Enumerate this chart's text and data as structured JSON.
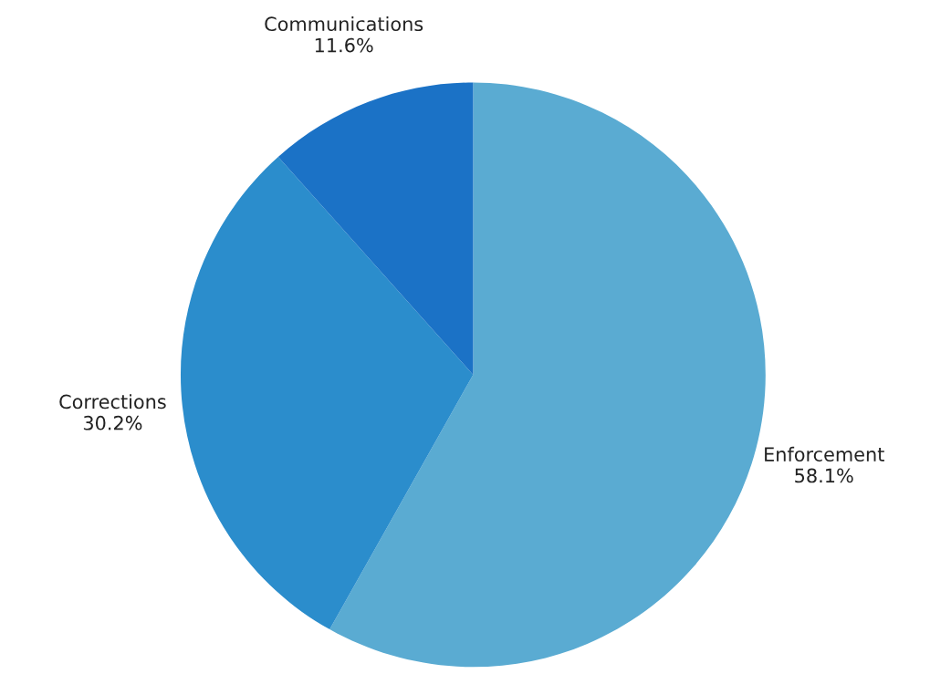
{
  "chart_data": {
    "type": "pie",
    "categories": [
      "Enforcement",
      "Corrections",
      "Communications"
    ],
    "values": [
      58.1,
      30.2,
      11.6
    ],
    "value_labels": [
      "58.1%",
      "30.2%",
      "11.6%"
    ],
    "colors": [
      "#5aabd2",
      "#2b8dcc",
      "#1b72c6"
    ]
  }
}
